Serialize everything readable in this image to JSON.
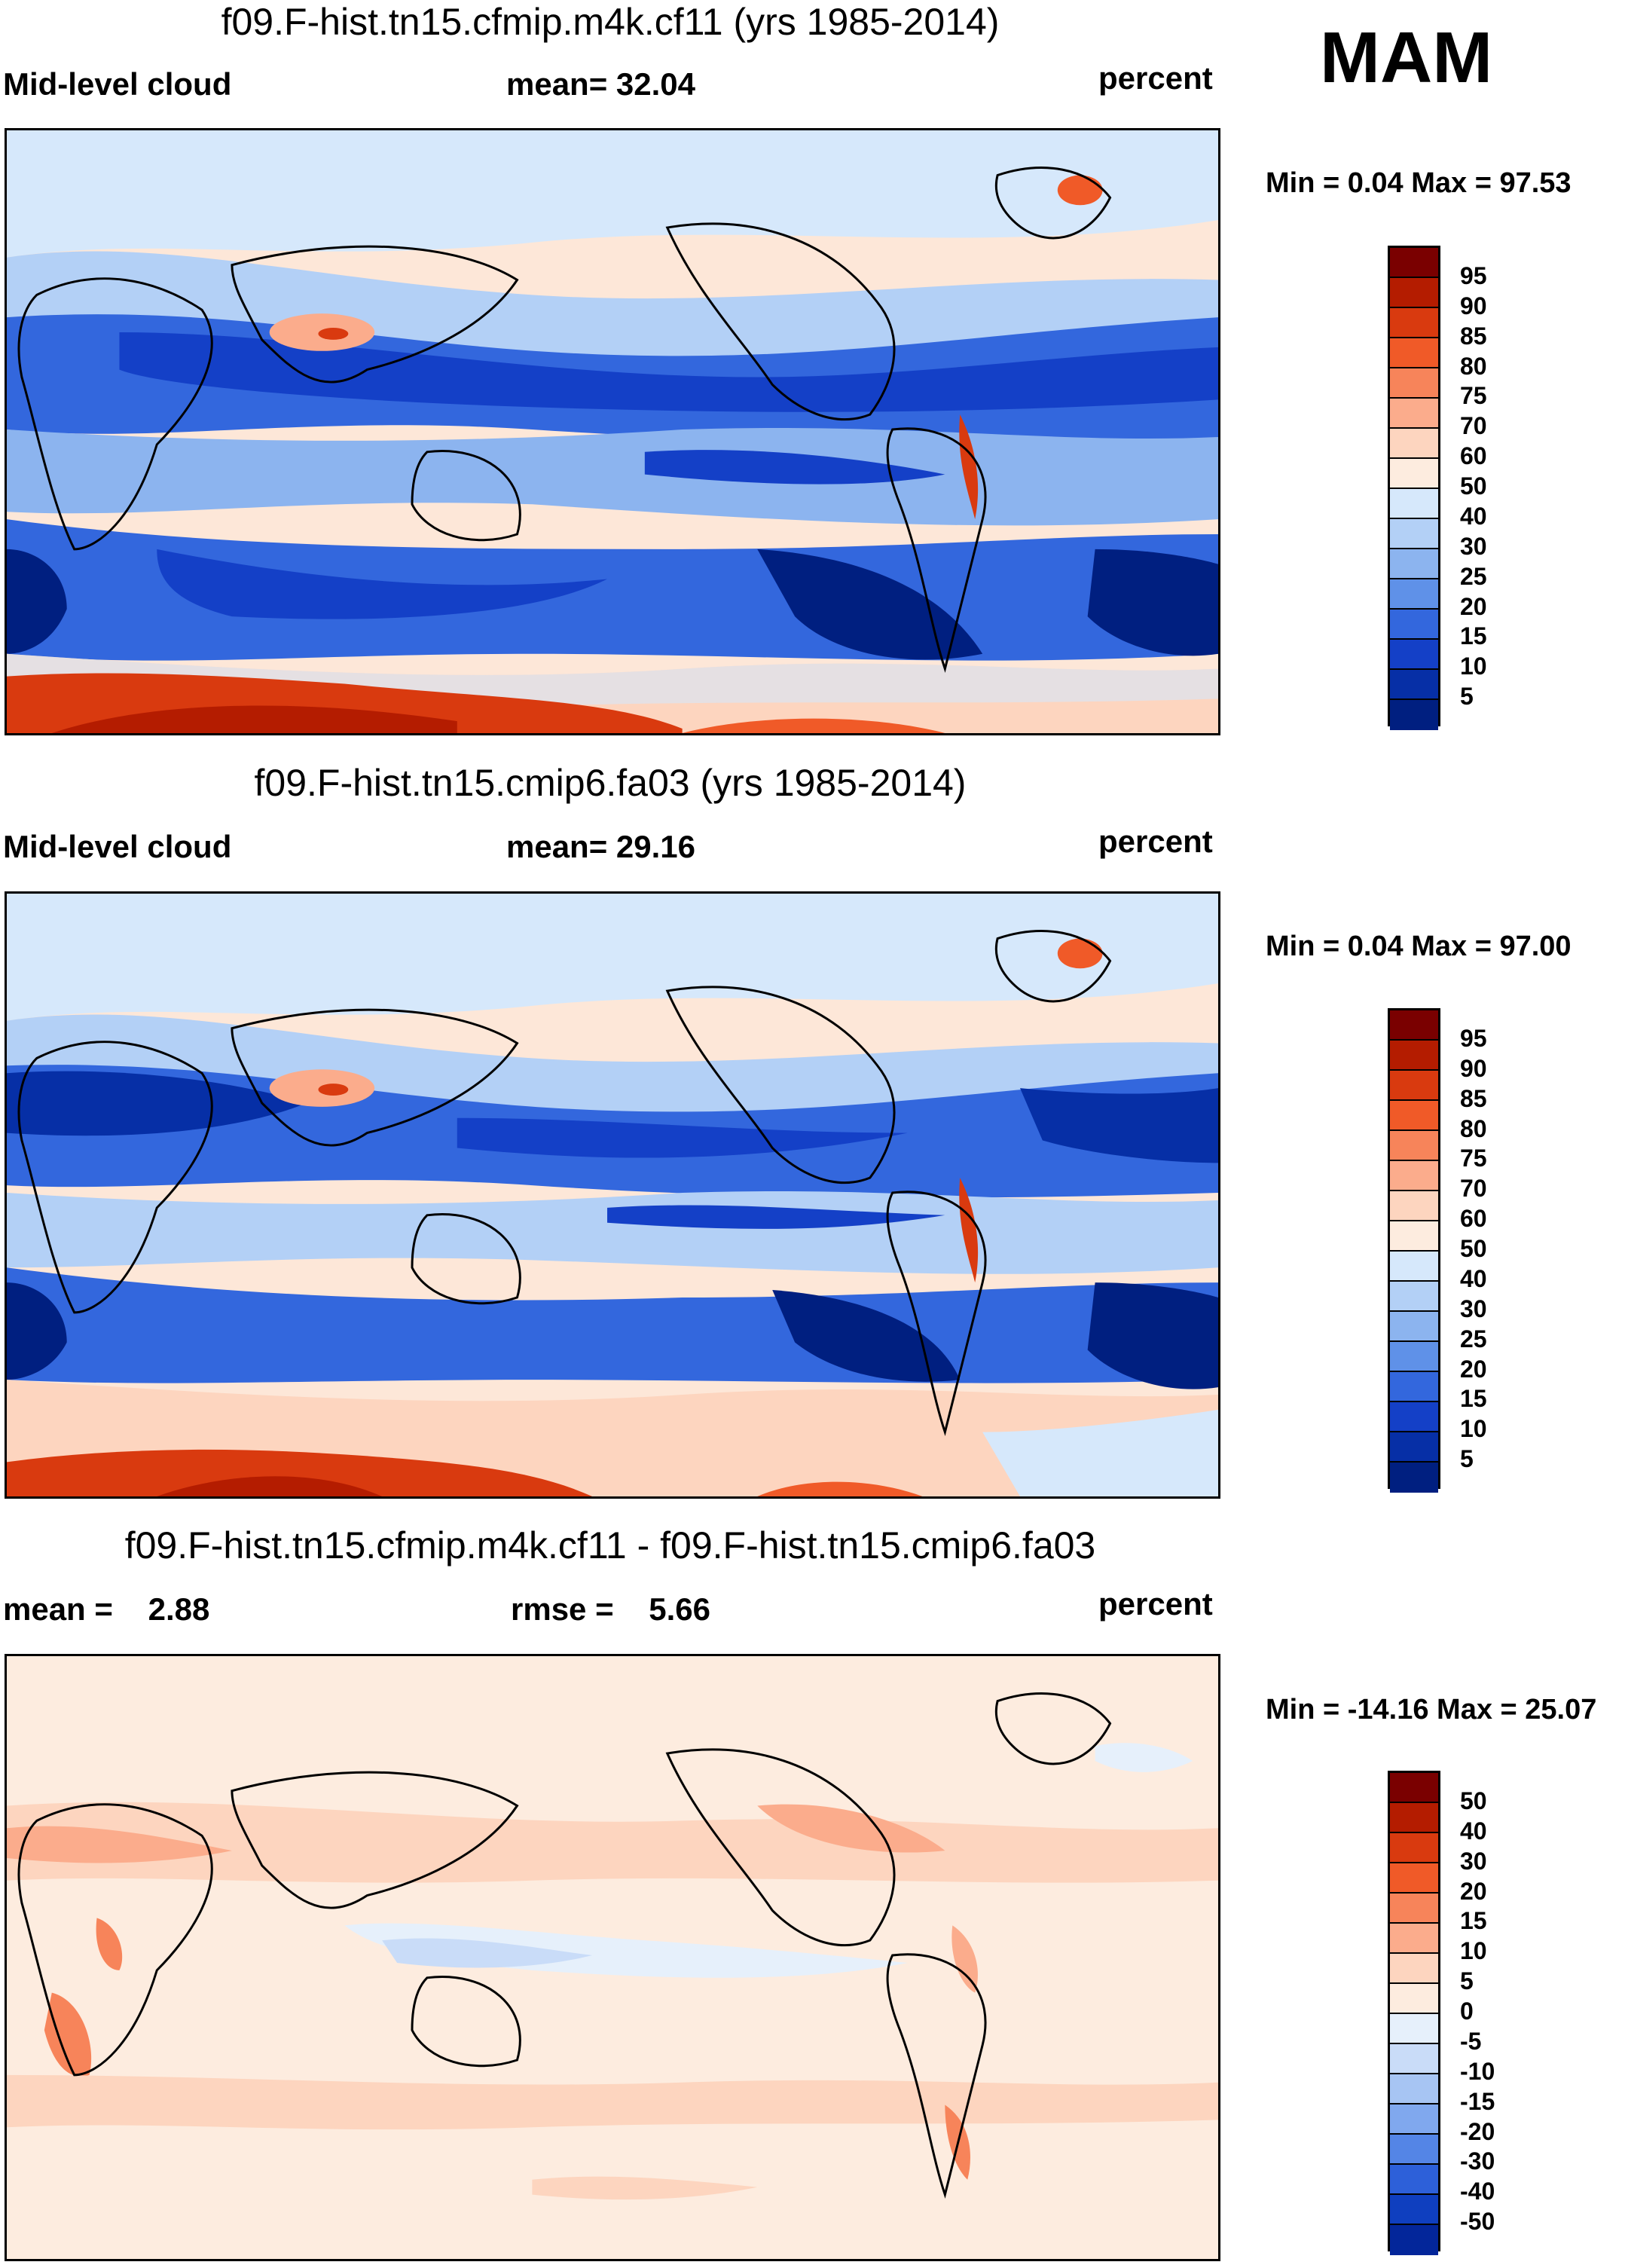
{
  "season": "MAM",
  "panels": [
    {
      "title": "f09.F-hist.tn15.cfmip.m4k.cf11 (yrs 1985-2014)",
      "left_label": "Mid-level cloud",
      "center_label": "mean=  32.04",
      "right_label": "percent",
      "minmax": "Min =   0.04 Max =  97.53",
      "colorbar_labels": [
        "95",
        "90",
        "85",
        "80",
        "75",
        "70",
        "60",
        "50",
        "40",
        "30",
        "25",
        "20",
        "15",
        "10",
        "5"
      ]
    },
    {
      "title": "f09.F-hist.tn15.cmip6.fa03 (yrs 1985-2014)",
      "left_label": "Mid-level cloud",
      "center_label": "mean=  29.16",
      "right_label": "percent",
      "minmax": "Min =   0.04 Max =  97.00",
      "colorbar_labels": [
        "95",
        "90",
        "85",
        "80",
        "75",
        "70",
        "60",
        "50",
        "40",
        "30",
        "25",
        "20",
        "15",
        "10",
        "5"
      ]
    },
    {
      "title": "f09.F-hist.tn15.cfmip.m4k.cf11 - f09.F-hist.tn15.cmip6.fa03",
      "left_label": "mean =    2.88",
      "center_label": "rmse =    5.66",
      "right_label": "percent",
      "minmax": "Min = -14.16 Max =  25.07",
      "colorbar_labels": [
        "50",
        "40",
        "30",
        "20",
        "15",
        "10",
        "5",
        "0",
        "-5",
        "-10",
        "-15",
        "-20",
        "-30",
        "-40",
        "-50"
      ]
    }
  ],
  "colors": {
    "abs_scale": [
      "#7a0000",
      "#b41c00",
      "#d93a0f",
      "#f05a28",
      "#f7845a",
      "#fbac8c",
      "#fdd5bf",
      "#fdecdf",
      "#d6e8fb",
      "#b3d0f6",
      "#8cb4ef",
      "#5f91e8",
      "#3367dd",
      "#1440c7",
      "#062fa6",
      "#001f80"
    ],
    "diff_scale": [
      "#7a0000",
      "#b41c00",
      "#d93a0f",
      "#f05a28",
      "#f7845a",
      "#fbac8c",
      "#fdd5bf",
      "#fdecdf",
      "#e6f0fb",
      "#c9dcf8",
      "#a7c5f3",
      "#80a8ee",
      "#5485e6",
      "#2d60d9",
      "#0f3fbf",
      "#03269a"
    ]
  }
}
